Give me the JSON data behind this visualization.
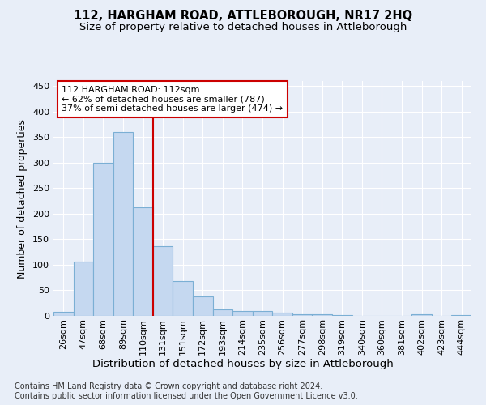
{
  "title": "112, HARGHAM ROAD, ATTLEBOROUGH, NR17 2HQ",
  "subtitle": "Size of property relative to detached houses in Attleborough",
  "xlabel": "Distribution of detached houses by size in Attleborough",
  "ylabel": "Number of detached properties",
  "footnote1": "Contains HM Land Registry data © Crown copyright and database right 2024.",
  "footnote2": "Contains public sector information licensed under the Open Government Licence v3.0.",
  "categories": [
    "26sqm",
    "47sqm",
    "68sqm",
    "89sqm",
    "110sqm",
    "131sqm",
    "151sqm",
    "172sqm",
    "193sqm",
    "214sqm",
    "235sqm",
    "256sqm",
    "277sqm",
    "298sqm",
    "319sqm",
    "340sqm",
    "360sqm",
    "381sqm",
    "402sqm",
    "423sqm",
    "444sqm"
  ],
  "values": [
    8,
    107,
    300,
    360,
    212,
    136,
    68,
    38,
    13,
    10,
    9,
    6,
    3,
    3,
    2,
    0,
    0,
    0,
    3,
    0,
    2
  ],
  "bar_color": "#c5d8f0",
  "bar_edge_color": "#7bafd4",
  "marker_line_idx": 4,
  "marker_label": "112 HARGHAM ROAD: 112sqm",
  "annotation_line1": "← 62% of detached houses are smaller (787)",
  "annotation_line2": "37% of semi-detached houses are larger (474) →",
  "annotation_box_color": "#ffffff",
  "annotation_box_edge": "#cc0000",
  "ylim": [
    0,
    460
  ],
  "bg_color": "#e8eef8",
  "grid_color": "#ffffff",
  "title_fontsize": 10.5,
  "subtitle_fontsize": 9.5,
  "ylabel_fontsize": 9,
  "xlabel_fontsize": 9.5,
  "tick_fontsize": 8,
  "footnote_fontsize": 7
}
